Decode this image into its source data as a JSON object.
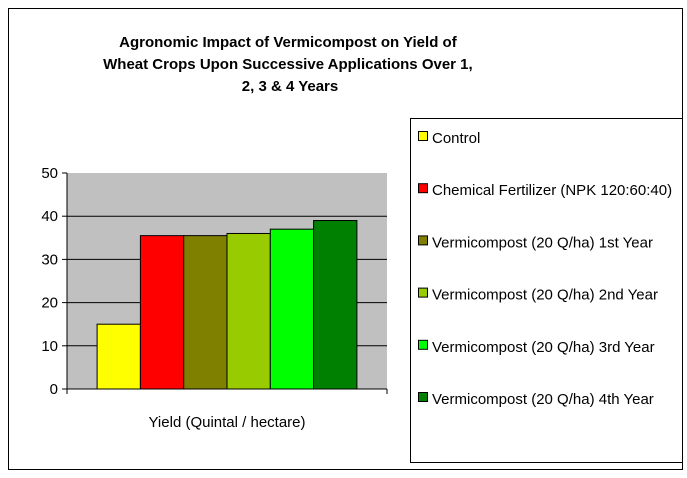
{
  "chart_data": {
    "type": "bar",
    "title": "Agronomic Impact of Vermicompost on Yield of Wheat Crops Upon Successive Applications Over 1, 2, 3 & 4 Years",
    "categories": [
      "Yield (Quintal / hectare)"
    ],
    "series": [
      {
        "name": "Control",
        "color": "#ffff00",
        "values": [
          15
        ]
      },
      {
        "name": "Chemical Fertilizer (NPK 120:60:40)",
        "color": "#ff0000",
        "values": [
          35.5
        ]
      },
      {
        "name": "Vermicompost (20 Q/ha) 1st Year",
        "color": "#808000",
        "values": [
          35.5
        ]
      },
      {
        "name": "Vermicompost (20 Q/ha) 2nd Year",
        "color": "#99cc00",
        "values": [
          36
        ]
      },
      {
        "name": "Vermicompost (20 Q/ha) 3rd Year",
        "color": "#00ff00",
        "values": [
          37
        ]
      },
      {
        "name": "Vermicompost (20 Q/ha) 4th Year",
        "color": "#008000",
        "values": [
          39
        ]
      }
    ],
    "ylim": [
      0,
      50
    ],
    "yticks": [
      0,
      10,
      20,
      30,
      40,
      50
    ],
    "grid": true,
    "legend": "right"
  }
}
